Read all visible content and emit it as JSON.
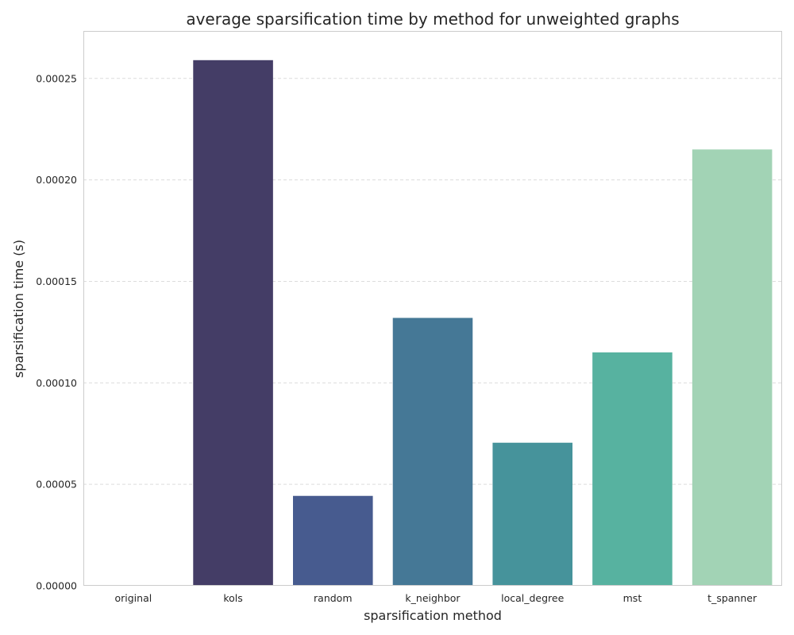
{
  "chart_data": {
    "type": "bar",
    "title": "average sparsification time by method for unweighted graphs",
    "xlabel": "sparsification method",
    "ylabel": "sparsification time (s)",
    "categories": [
      "original",
      "kols",
      "random",
      "k_neighbor",
      "local_degree",
      "mst",
      "t_spanner"
    ],
    "values": [
      0.0,
      0.000259,
      4.43e-05,
      0.000132,
      7.05e-05,
      0.000115,
      0.000215
    ],
    "colors": [
      "#3f3a63",
      "#443d66",
      "#475b8f",
      "#457896",
      "#46939b",
      "#57b2a0",
      "#a2d3b5"
    ],
    "ylim": [
      0,
      0.000273
    ],
    "yticks": [
      0,
      5e-05,
      0.0001,
      0.00015,
      0.0002,
      0.00025
    ],
    "ytick_labels": [
      "0.00000",
      "0.00005",
      "0.00010",
      "0.00015",
      "0.00020",
      "0.00025"
    ],
    "grid": true
  }
}
